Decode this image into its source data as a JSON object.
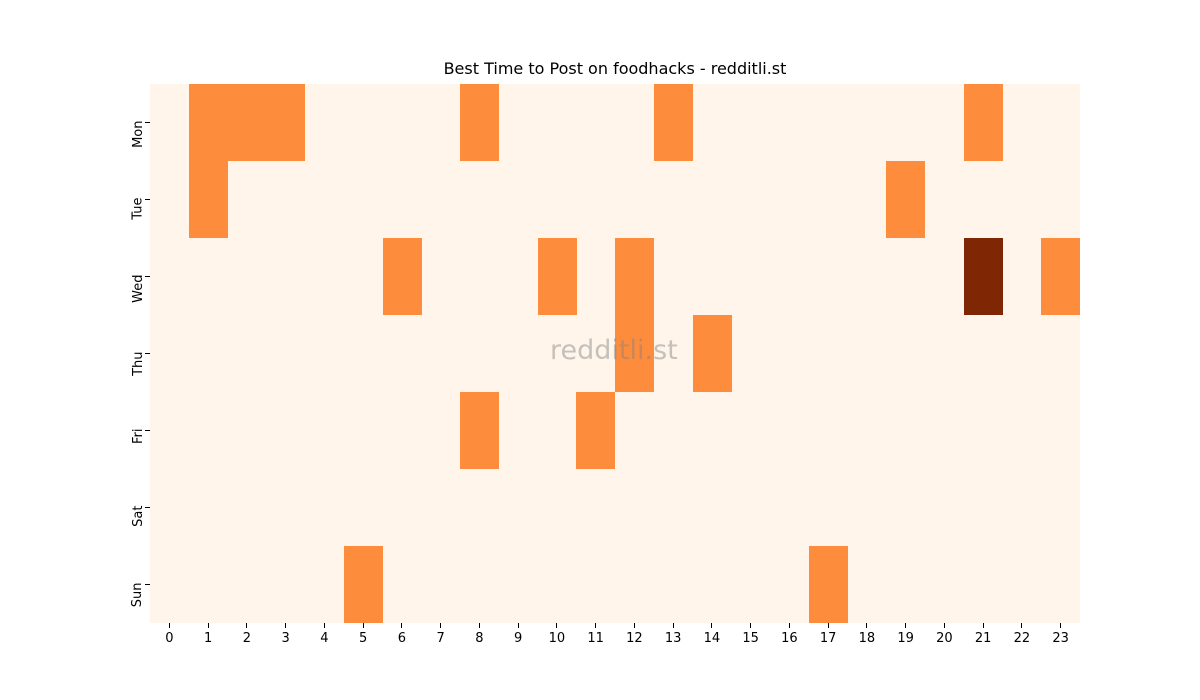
{
  "title": "Best Time to Post on foodhacks - redditli.st",
  "watermark": "redditli.st",
  "colors": {
    "background": "#fff5eb",
    "level1": "#fd8d3c",
    "level2": "#7f2704"
  },
  "chart_data": {
    "type": "heatmap",
    "title": "Best Time to Post on foodhacks - redditli.st",
    "xlabel": "",
    "ylabel": "",
    "x": [
      0,
      1,
      2,
      3,
      4,
      5,
      6,
      7,
      8,
      9,
      10,
      11,
      12,
      13,
      14,
      15,
      16,
      17,
      18,
      19,
      20,
      21,
      22,
      23
    ],
    "y": [
      "Mon",
      "Tue",
      "Wed",
      "Thu",
      "Fri",
      "Sat",
      "Sun"
    ],
    "values": [
      [
        0,
        1,
        1,
        1,
        0,
        0,
        0,
        0,
        1,
        0,
        0,
        0,
        0,
        1,
        0,
        0,
        0,
        0,
        0,
        0,
        0,
        1,
        0,
        0
      ],
      [
        0,
        1,
        0,
        0,
        0,
        0,
        0,
        0,
        0,
        0,
        0,
        0,
        0,
        0,
        0,
        0,
        0,
        0,
        0,
        1,
        0,
        0,
        0,
        0
      ],
      [
        0,
        0,
        0,
        0,
        0,
        0,
        1,
        0,
        0,
        0,
        1,
        0,
        1,
        0,
        0,
        0,
        0,
        0,
        0,
        0,
        0,
        2,
        0,
        1
      ],
      [
        0,
        0,
        0,
        0,
        0,
        0,
        0,
        0,
        0,
        0,
        0,
        0,
        1,
        0,
        1,
        0,
        0,
        0,
        0,
        0,
        0,
        0,
        0,
        0
      ],
      [
        0,
        0,
        0,
        0,
        0,
        0,
        0,
        0,
        1,
        0,
        0,
        1,
        0,
        0,
        0,
        0,
        0,
        0,
        0,
        0,
        0,
        0,
        0,
        0
      ],
      [
        0,
        0,
        0,
        0,
        0,
        0,
        0,
        0,
        0,
        0,
        0,
        0,
        0,
        0,
        0,
        0,
        0,
        0,
        0,
        0,
        0,
        0,
        0,
        0
      ],
      [
        0,
        0,
        0,
        0,
        0,
        1,
        0,
        0,
        0,
        0,
        0,
        0,
        0,
        0,
        0,
        0,
        0,
        1,
        0,
        0,
        0,
        0,
        0,
        0
      ]
    ],
    "colormap": "Oranges",
    "legend": "none",
    "grid": false
  }
}
